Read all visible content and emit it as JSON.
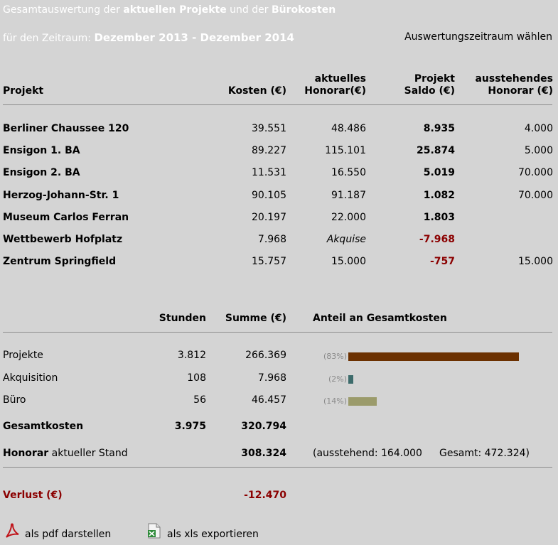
{
  "header": {
    "title_plain1": "Gesamtauswertung der ",
    "title_bold1": "aktuellen Projekte",
    "title_plain2": " und der ",
    "title_bold2": "Bürokosten",
    "period_label": "für den Zeitraum: ",
    "period_value": "Dezember 2013 - Dezember 2014",
    "select_period_link": "Auswertungszeitraum wählen"
  },
  "projects_table": {
    "headers": {
      "project": "Projekt",
      "kosten": "Kosten (€)",
      "honorar_line1": "aktuelles",
      "honorar_line2": "Honorar(€)",
      "saldo_line1": "Projekt",
      "saldo_line2": "Saldo (€)",
      "ausstehend_line1": "ausstehendes",
      "ausstehend_line2": "Honorar (€)"
    },
    "rows": [
      {
        "name": "Berliner Chaussee 120",
        "kosten": "39.551",
        "honorar": "48.486",
        "saldo": "8.935",
        "ausstehend": "4.000"
      },
      {
        "name": "Ensigon 1. BA",
        "kosten": "89.227",
        "honorar": "115.101",
        "saldo": "25.874",
        "ausstehend": "5.000"
      },
      {
        "name": "Ensigon 2. BA",
        "kosten": "11.531",
        "honorar": "16.550",
        "saldo": "5.019",
        "ausstehend": "70.000"
      },
      {
        "name": "Herzog-Johann-Str. 1",
        "kosten": "90.105",
        "honorar": "91.187",
        "saldo": "1.082",
        "ausstehend": "70.000"
      },
      {
        "name": "Museum Carlos Ferran",
        "kosten": "20.197",
        "honorar": "22.000",
        "saldo": "1.803",
        "ausstehend": ""
      },
      {
        "name": "Wettbewerb Hofplatz",
        "kosten": "7.968",
        "honorar": "Akquise",
        "saldo": "-7.968",
        "ausstehend": ""
      },
      {
        "name": "Zentrum Springfield",
        "kosten": "15.757",
        "honorar": "15.000",
        "saldo": "-757",
        "ausstehend": "15.000"
      }
    ]
  },
  "summary_table": {
    "headers": {
      "stunden": "Stunden",
      "summe": "Summe (€)",
      "anteil": "Anteil an Gesamtkosten"
    },
    "rows": [
      {
        "label": "Projekte",
        "stunden": "3.812",
        "summe": "266.369",
        "pct_label": "(83%)",
        "share": 0.83,
        "color": "#6b3000"
      },
      {
        "label": "Akquisition",
        "stunden": "108",
        "summe": "7.968",
        "pct_label": "(2%)",
        "share": 0.025,
        "color": "#3d6b6b"
      },
      {
        "label": "Büro",
        "stunden": "56",
        "summe": "46.457",
        "pct_label": "(14%)",
        "share": 0.14,
        "color": "#9b9b6b"
      }
    ],
    "total": {
      "label": "Gesamtkosten",
      "stunden": "3.975",
      "summe": "320.794"
    },
    "honorar": {
      "label_bold": "Honorar",
      "label_rest": " aktueller Stand",
      "summe": "308.324",
      "ausstehend": "(ausstehend: 164.000",
      "gesamt": "Gesamt: 472.324)"
    },
    "verlust": {
      "label": "Verlust (€)",
      "value": "-12.470"
    }
  },
  "footer": {
    "pdf_label": "als pdf darstellen",
    "xls_label": "als xls exportieren"
  },
  "colors": {
    "background": "#d4d4d4",
    "negative": "#8b0000",
    "header_text": "#ffffff"
  }
}
